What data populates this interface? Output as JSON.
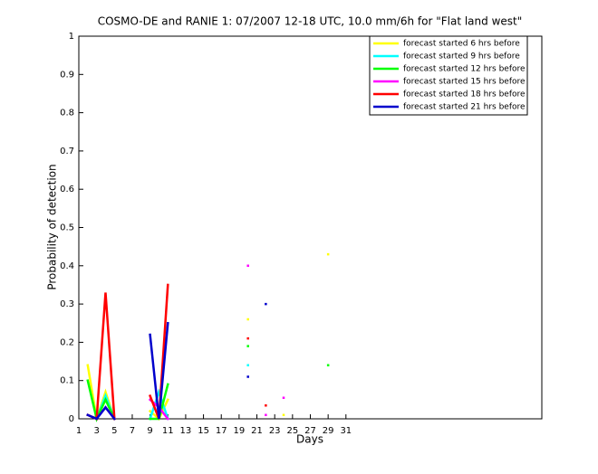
{
  "chart_data": {
    "type": "line",
    "title": "COSMO-DE and RANIE 1: 07/2007 12-18 UTC, 10.0 mm/6h for \"Flat land west\"",
    "x_label": "Days",
    "y_label": "Probability of detection",
    "x": [
      1,
      2,
      3,
      4,
      5,
      6,
      7,
      8,
      9,
      10,
      11,
      12,
      13,
      14,
      15,
      16,
      17,
      18,
      19,
      20,
      21,
      22,
      23,
      24,
      25,
      26,
      27,
      28,
      29,
      30,
      31
    ],
    "xlim": [
      1,
      53
    ],
    "xticks": [
      1,
      3,
      5,
      7,
      9,
      11,
      13,
      15,
      17,
      19,
      21,
      23,
      25,
      27,
      29,
      31
    ],
    "ylim": [
      0,
      1
    ],
    "yticks": [
      0,
      0.1,
      0.2,
      0.3,
      0.4,
      0.5,
      0.6,
      0.7,
      0.8,
      0.9,
      1
    ],
    "legend": "northeast",
    "series": [
      {
        "name": "forecast started 6 hrs before",
        "color": "#ffff00",
        "values": [
          null,
          0.14,
          0,
          0.07,
          0,
          null,
          null,
          null,
          0.02,
          0,
          0.05,
          null,
          null,
          null,
          null,
          null,
          null,
          null,
          null,
          0.26,
          null,
          null,
          null,
          0.01,
          null,
          null,
          null,
          null,
          0.43,
          null,
          null
        ]
      },
      {
        "name": "forecast started 9 hrs before",
        "color": "#00ffff",
        "values": [
          null,
          0.01,
          0,
          0.06,
          0,
          null,
          null,
          null,
          0,
          0.07,
          0,
          null,
          null,
          null,
          null,
          null,
          null,
          null,
          null,
          0.14,
          null,
          null,
          null,
          null,
          null,
          null,
          null,
          null,
          null,
          null,
          null
        ]
      },
      {
        "name": "forecast started 12 hrs before",
        "color": "#00ff00",
        "values": [
          null,
          0.1,
          0,
          0.05,
          0,
          null,
          null,
          null,
          0,
          0,
          0.09,
          null,
          null,
          null,
          null,
          null,
          null,
          null,
          null,
          0.19,
          null,
          null,
          null,
          null,
          null,
          null,
          null,
          null,
          0.14,
          null,
          null
        ]
      },
      {
        "name": "forecast started 15 hrs before",
        "color": "#ff00ff",
        "values": [
          null,
          0.01,
          0,
          0.03,
          0,
          null,
          null,
          null,
          0.05,
          0.03,
          0,
          null,
          null,
          null,
          null,
          null,
          null,
          null,
          null,
          0.4,
          null,
          0.01,
          null,
          0.055,
          null,
          null,
          null,
          null,
          null,
          null,
          null
        ]
      },
      {
        "name": "forecast started 18 hrs before",
        "color": "#ff0000",
        "values": [
          null,
          0.01,
          0,
          0.33,
          0,
          null,
          null,
          null,
          0.06,
          0,
          0.35,
          null,
          null,
          null,
          null,
          null,
          null,
          null,
          null,
          0.21,
          null,
          0.035,
          null,
          null,
          null,
          null,
          null,
          null,
          null,
          null,
          null
        ]
      },
      {
        "name": "forecast started 21 hrs before",
        "color": "#0000cc",
        "values": [
          null,
          0.01,
          0,
          0.03,
          0,
          null,
          null,
          null,
          0.22,
          0,
          0.25,
          null,
          null,
          null,
          null,
          null,
          null,
          null,
          null,
          0.11,
          null,
          0.3,
          null,
          null,
          null,
          null,
          null,
          null,
          null,
          null,
          null
        ]
      }
    ]
  }
}
